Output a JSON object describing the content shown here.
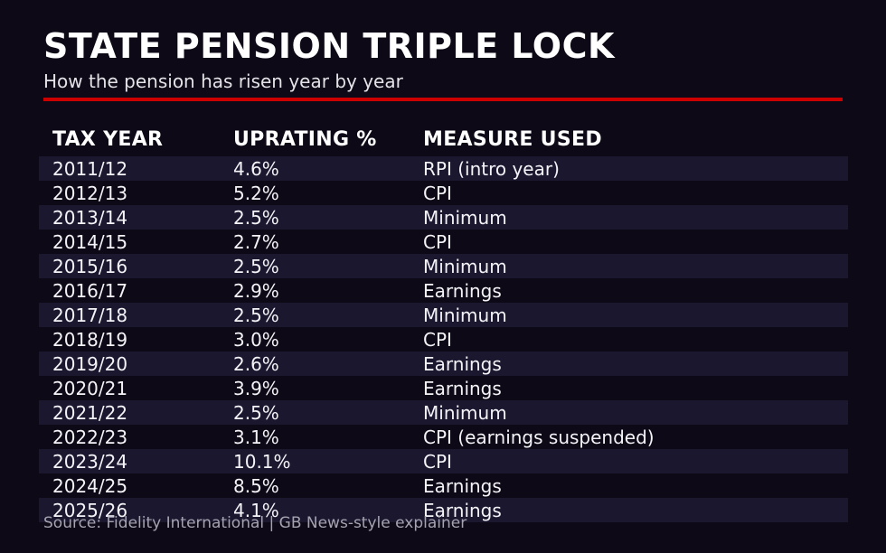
{
  "page": {
    "background_color": "#0d0916",
    "stripe_color": "#1a172f",
    "accent_red": "#cc0000",
    "title_color": "#ffffff",
    "subtitle_color": "#e4e3e8",
    "row_text_color": "#f4f3f7",
    "source_text_color": "#a6a3b0"
  },
  "header": {
    "title": "STATE PENSION TRIPLE LOCK",
    "subtitle": "How the pension has risen year by year"
  },
  "table": {
    "columns": [
      "TAX YEAR",
      "UPRATING %",
      "MEASURE USED"
    ],
    "rows": [
      {
        "year": "2011/12",
        "uprating": "4.6%",
        "measure": "RPI (intro year)"
      },
      {
        "year": "2012/13",
        "uprating": "5.2%",
        "measure": "CPI"
      },
      {
        "year": "2013/14",
        "uprating": "2.5%",
        "measure": "Minimum"
      },
      {
        "year": "2014/15",
        "uprating": "2.7%",
        "measure": "CPI"
      },
      {
        "year": "2015/16",
        "uprating": "2.5%",
        "measure": "Minimum"
      },
      {
        "year": "2016/17",
        "uprating": "2.9%",
        "measure": "Earnings"
      },
      {
        "year": "2017/18",
        "uprating": "2.5%",
        "measure": "Minimum"
      },
      {
        "year": "2018/19",
        "uprating": "3.0%",
        "measure": "CPI"
      },
      {
        "year": "2019/20",
        "uprating": "2.6%",
        "measure": "Earnings"
      },
      {
        "year": "2020/21",
        "uprating": "3.9%",
        "measure": "Earnings"
      },
      {
        "year": "2021/22",
        "uprating": "2.5%",
        "measure": "Minimum"
      },
      {
        "year": "2022/23",
        "uprating": "3.1%",
        "measure": "CPI (earnings suspended)"
      },
      {
        "year": "2023/24",
        "uprating": "10.1%",
        "measure": "CPI"
      },
      {
        "year": "2024/25",
        "uprating": "8.5%",
        "measure": "Earnings"
      },
      {
        "year": "2025/26",
        "uprating": "4.1%",
        "measure": "Earnings"
      }
    ]
  },
  "footer": {
    "source": "Source: Fidelity International | GB News-style explainer"
  },
  "chart_data": {
    "type": "table",
    "title": "STATE PENSION TRIPLE LOCK",
    "subtitle": "How the pension has risen year by year",
    "columns": [
      "TAX YEAR",
      "UPRATING %",
      "MEASURE USED"
    ],
    "rows": [
      [
        "2011/12",
        "4.6%",
        "RPI (intro year)"
      ],
      [
        "2012/13",
        "5.2%",
        "CPI"
      ],
      [
        "2013/14",
        "2.5%",
        "Minimum"
      ],
      [
        "2014/15",
        "2.7%",
        "CPI"
      ],
      [
        "2015/16",
        "2.5%",
        "Minimum"
      ],
      [
        "2016/17",
        "2.9%",
        "Earnings"
      ],
      [
        "2017/18",
        "2.5%",
        "Minimum"
      ],
      [
        "2018/19",
        "3.0%",
        "CPI"
      ],
      [
        "2019/20",
        "2.6%",
        "Earnings"
      ],
      [
        "2020/21",
        "3.9%",
        "Earnings"
      ],
      [
        "2021/22",
        "2.5%",
        "Minimum"
      ],
      [
        "2022/23",
        "3.1%",
        "CPI (earnings suspended)"
      ],
      [
        "2023/24",
        "10.1%",
        "CPI"
      ],
      [
        "2024/25",
        "8.5%",
        "Earnings"
      ],
      [
        "2025/26",
        "4.1%",
        "Earnings"
      ]
    ],
    "uprating_values_numeric": [
      4.6,
      5.2,
      2.5,
      2.7,
      2.5,
      2.9,
      2.5,
      3.0,
      2.6,
      3.9,
      2.5,
      3.1,
      10.1,
      8.5,
      4.1
    ],
    "source": "Source: Fidelity International | GB News-style explainer",
    "layout": {
      "striped_rows": "odd",
      "grid": false,
      "legend": "none"
    }
  }
}
